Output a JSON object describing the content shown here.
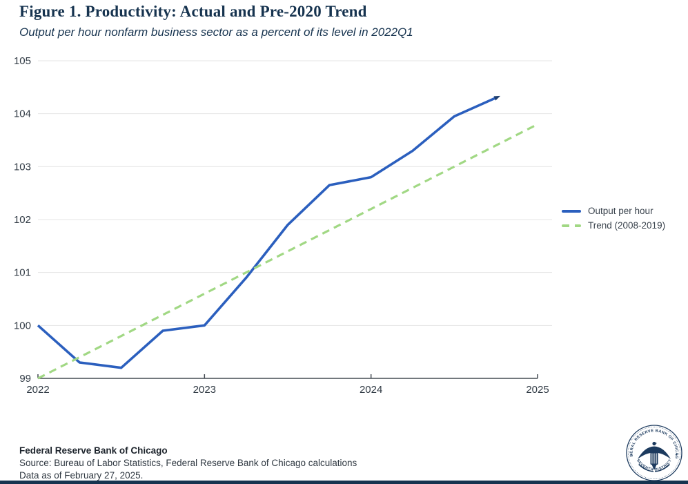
{
  "header": {
    "title": "Figure 1. Productivity: Actual and Pre-2020 Trend",
    "subtitle": "Output per hour nonfarm business sector as a percent of its level in 2022Q1"
  },
  "chart_data": {
    "type": "line",
    "title": "Figure 1. Productivity: Actual and Pre-2020 Trend",
    "subtitle": "Output per hour nonfarm business sector as a percent of its level in 2022Q1",
    "xlabel": "",
    "ylabel": "",
    "xlim": [
      2022,
      2025
    ],
    "ylim": [
      99,
      105
    ],
    "x_ticks": [
      2022,
      2023,
      2024,
      2025
    ],
    "y_ticks": [
      99,
      100,
      101,
      102,
      103,
      104,
      105
    ],
    "grid": "horizontal",
    "legend_position": "right",
    "series": [
      {
        "name": "Output per hour",
        "style": "solid",
        "color": "#2b5fbe",
        "x": [
          2022.0,
          2022.25,
          2022.5,
          2022.75,
          2023.0,
          2023.25,
          2023.5,
          2023.75,
          2024.0,
          2024.25,
          2024.5,
          2024.75
        ],
        "values": [
          100.0,
          99.3,
          99.2,
          99.9,
          100.0,
          100.9,
          101.9,
          102.65,
          102.8,
          103.3,
          103.95,
          104.3
        ]
      },
      {
        "name": "Trend (2008-2019)",
        "style": "dashed",
        "color": "#a1d884",
        "x": [
          2022.0,
          2025.0
        ],
        "values": [
          99.0,
          103.8
        ]
      }
    ]
  },
  "footer": {
    "organization": "Federal Reserve Bank of Chicago",
    "source": "Source: Bureau of Labor Statistics, Federal Reserve Bank of Chicago calculations",
    "as_of": "Data as of February 27, 2025."
  },
  "seal": {
    "top_text": "FEDERAL RESERVE BANK OF CHICAGO",
    "bottom_text": "SEVENTH DISTRICT"
  },
  "colors": {
    "accent_navy": "#16334f",
    "output_line": "#2b5fbe",
    "trend_line": "#a1d884",
    "gridline": "#e4e4e4",
    "axis": "#444b52",
    "tick_label": "#303a44"
  }
}
